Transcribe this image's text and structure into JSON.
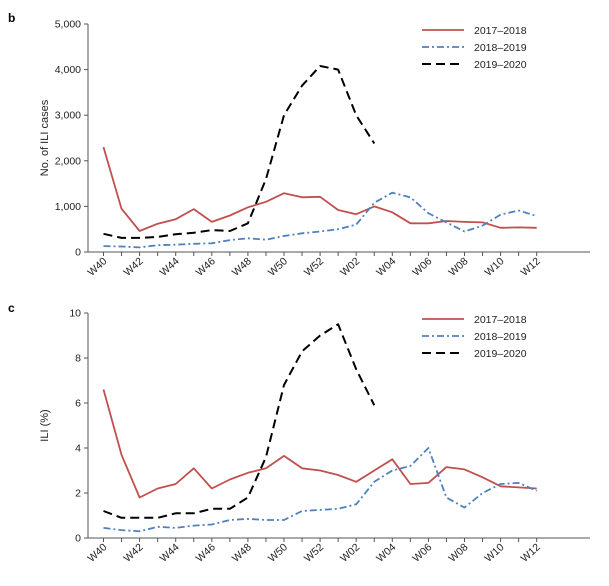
{
  "chart_data": [
    {
      "panel": "b",
      "type": "line",
      "ylabel": "No. of ILI cases",
      "ylim": [
        0,
        5000
      ],
      "yticks": [
        0,
        1000,
        2000,
        3000,
        4000,
        5000
      ],
      "ytick_labels": [
        "0",
        "1,000",
        "2,000",
        "3,000",
        "4,000",
        "5,000"
      ],
      "categories": [
        "W40",
        "W41",
        "W42",
        "W43",
        "W44",
        "W45",
        "W46",
        "W47",
        "W48",
        "W49",
        "W50",
        "W51",
        "W52",
        "W01",
        "W02",
        "W03",
        "W04",
        "W05",
        "W06",
        "W07",
        "W08",
        "W09",
        "W10",
        "W11",
        "W12",
        "W13"
      ],
      "tick_labels": [
        "W40",
        "W42",
        "W44",
        "W46",
        "W48",
        "W50",
        "W52",
        "W02",
        "W04",
        "W06",
        "W08",
        "W10",
        "W12"
      ],
      "legend": "top-right",
      "series": [
        {
          "name": "2017–2018",
          "color": "#c0504d",
          "style": "solid",
          "values": [
            2300,
            950,
            460,
            620,
            720,
            940,
            660,
            800,
            980,
            1100,
            1290,
            1200,
            1210,
            920,
            830,
            1000,
            870,
            630,
            630,
            680,
            660,
            650,
            530,
            540,
            530,
            null
          ]
        },
        {
          "name": "2018–2019",
          "color": "#4f81bd",
          "style": "dashdot",
          "values": [
            130,
            120,
            100,
            150,
            160,
            180,
            190,
            260,
            300,
            270,
            350,
            410,
            450,
            500,
            600,
            1080,
            1300,
            1200,
            850,
            650,
            450,
            580,
            820,
            910,
            790,
            null
          ]
        },
        {
          "name": "2019–2020",
          "color": "#000000",
          "style": "dashed",
          "values": [
            400,
            310,
            310,
            330,
            390,
            420,
            480,
            460,
            630,
            1600,
            3000,
            3650,
            4080,
            4000,
            3000,
            2380,
            null,
            null,
            null,
            null,
            null,
            null,
            null,
            null,
            null,
            null
          ]
        }
      ]
    },
    {
      "panel": "c",
      "type": "line",
      "ylabel": "ILI (%)",
      "ylim": [
        0,
        10
      ],
      "yticks": [
        0,
        2,
        4,
        6,
        8,
        10
      ],
      "ytick_labels": [
        "0",
        "2",
        "4",
        "6",
        "8",
        "10"
      ],
      "categories": [
        "W40",
        "W41",
        "W42",
        "W43",
        "W44",
        "W45",
        "W46",
        "W47",
        "W48",
        "W49",
        "W50",
        "W51",
        "W52",
        "W01",
        "W02",
        "W03",
        "W04",
        "W05",
        "W06",
        "W07",
        "W08",
        "W09",
        "W10",
        "W11",
        "W12",
        "W13"
      ],
      "tick_labels": [
        "W40",
        "W42",
        "W44",
        "W46",
        "W48",
        "W50",
        "W52",
        "W02",
        "W04",
        "W06",
        "W08",
        "W10",
        "W12"
      ],
      "legend": "top-right",
      "series": [
        {
          "name": "2017–2018",
          "color": "#c0504d",
          "style": "solid",
          "values": [
            6.6,
            3.7,
            1.8,
            2.2,
            2.4,
            3.1,
            2.2,
            2.6,
            2.9,
            3.1,
            3.65,
            3.1,
            3.0,
            2.8,
            2.5,
            3.0,
            3.5,
            2.4,
            2.45,
            3.15,
            3.05,
            2.7,
            2.3,
            2.25,
            2.2,
            null
          ]
        },
        {
          "name": "2018–2019",
          "color": "#4f81bd",
          "style": "dashdot",
          "values": [
            0.45,
            0.35,
            0.3,
            0.5,
            0.45,
            0.55,
            0.6,
            0.8,
            0.85,
            0.8,
            0.8,
            1.2,
            1.25,
            1.3,
            1.5,
            2.5,
            3.0,
            3.2,
            4.0,
            1.8,
            1.35,
            2.0,
            2.4,
            2.45,
            2.1,
            null
          ]
        },
        {
          "name": "2019–2020",
          "color": "#000000",
          "style": "dashed",
          "values": [
            1.2,
            0.9,
            0.9,
            0.9,
            1.1,
            1.1,
            1.3,
            1.3,
            1.8,
            3.6,
            6.8,
            8.3,
            9.0,
            9.5,
            7.5,
            5.9,
            null,
            null,
            null,
            null,
            null,
            null,
            null,
            null,
            null,
            null
          ]
        }
      ]
    }
  ]
}
